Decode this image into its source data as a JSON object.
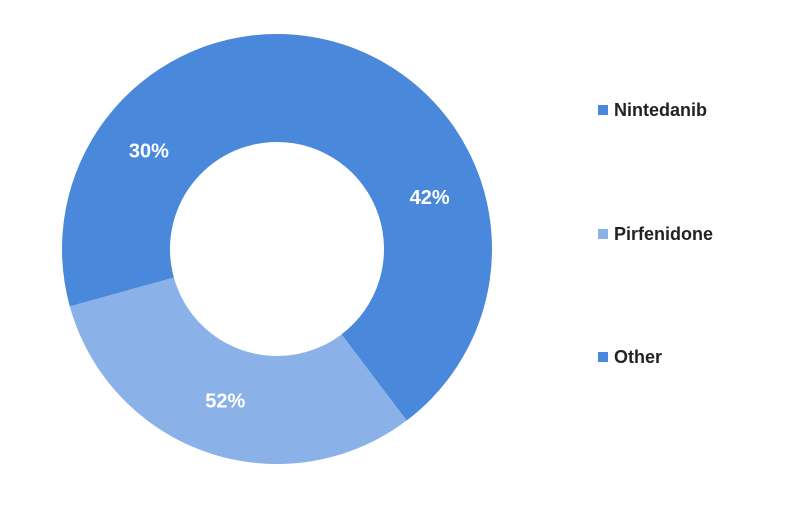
{
  "chart_data": {
    "type": "pie",
    "donut": true,
    "title": "",
    "legend_position": "right",
    "slices": [
      {
        "name": "Nintedanib",
        "label": "42%",
        "sweep_fraction": 0.397,
        "color": "#4A88DB"
      },
      {
        "name": "Pirfenidone",
        "label": "52%",
        "sweep_fraction": 0.31,
        "color": "#8AB1E8"
      },
      {
        "name": "Other",
        "label": "30%",
        "sweep_fraction": 0.293,
        "color": "#4A88DB"
      }
    ]
  }
}
